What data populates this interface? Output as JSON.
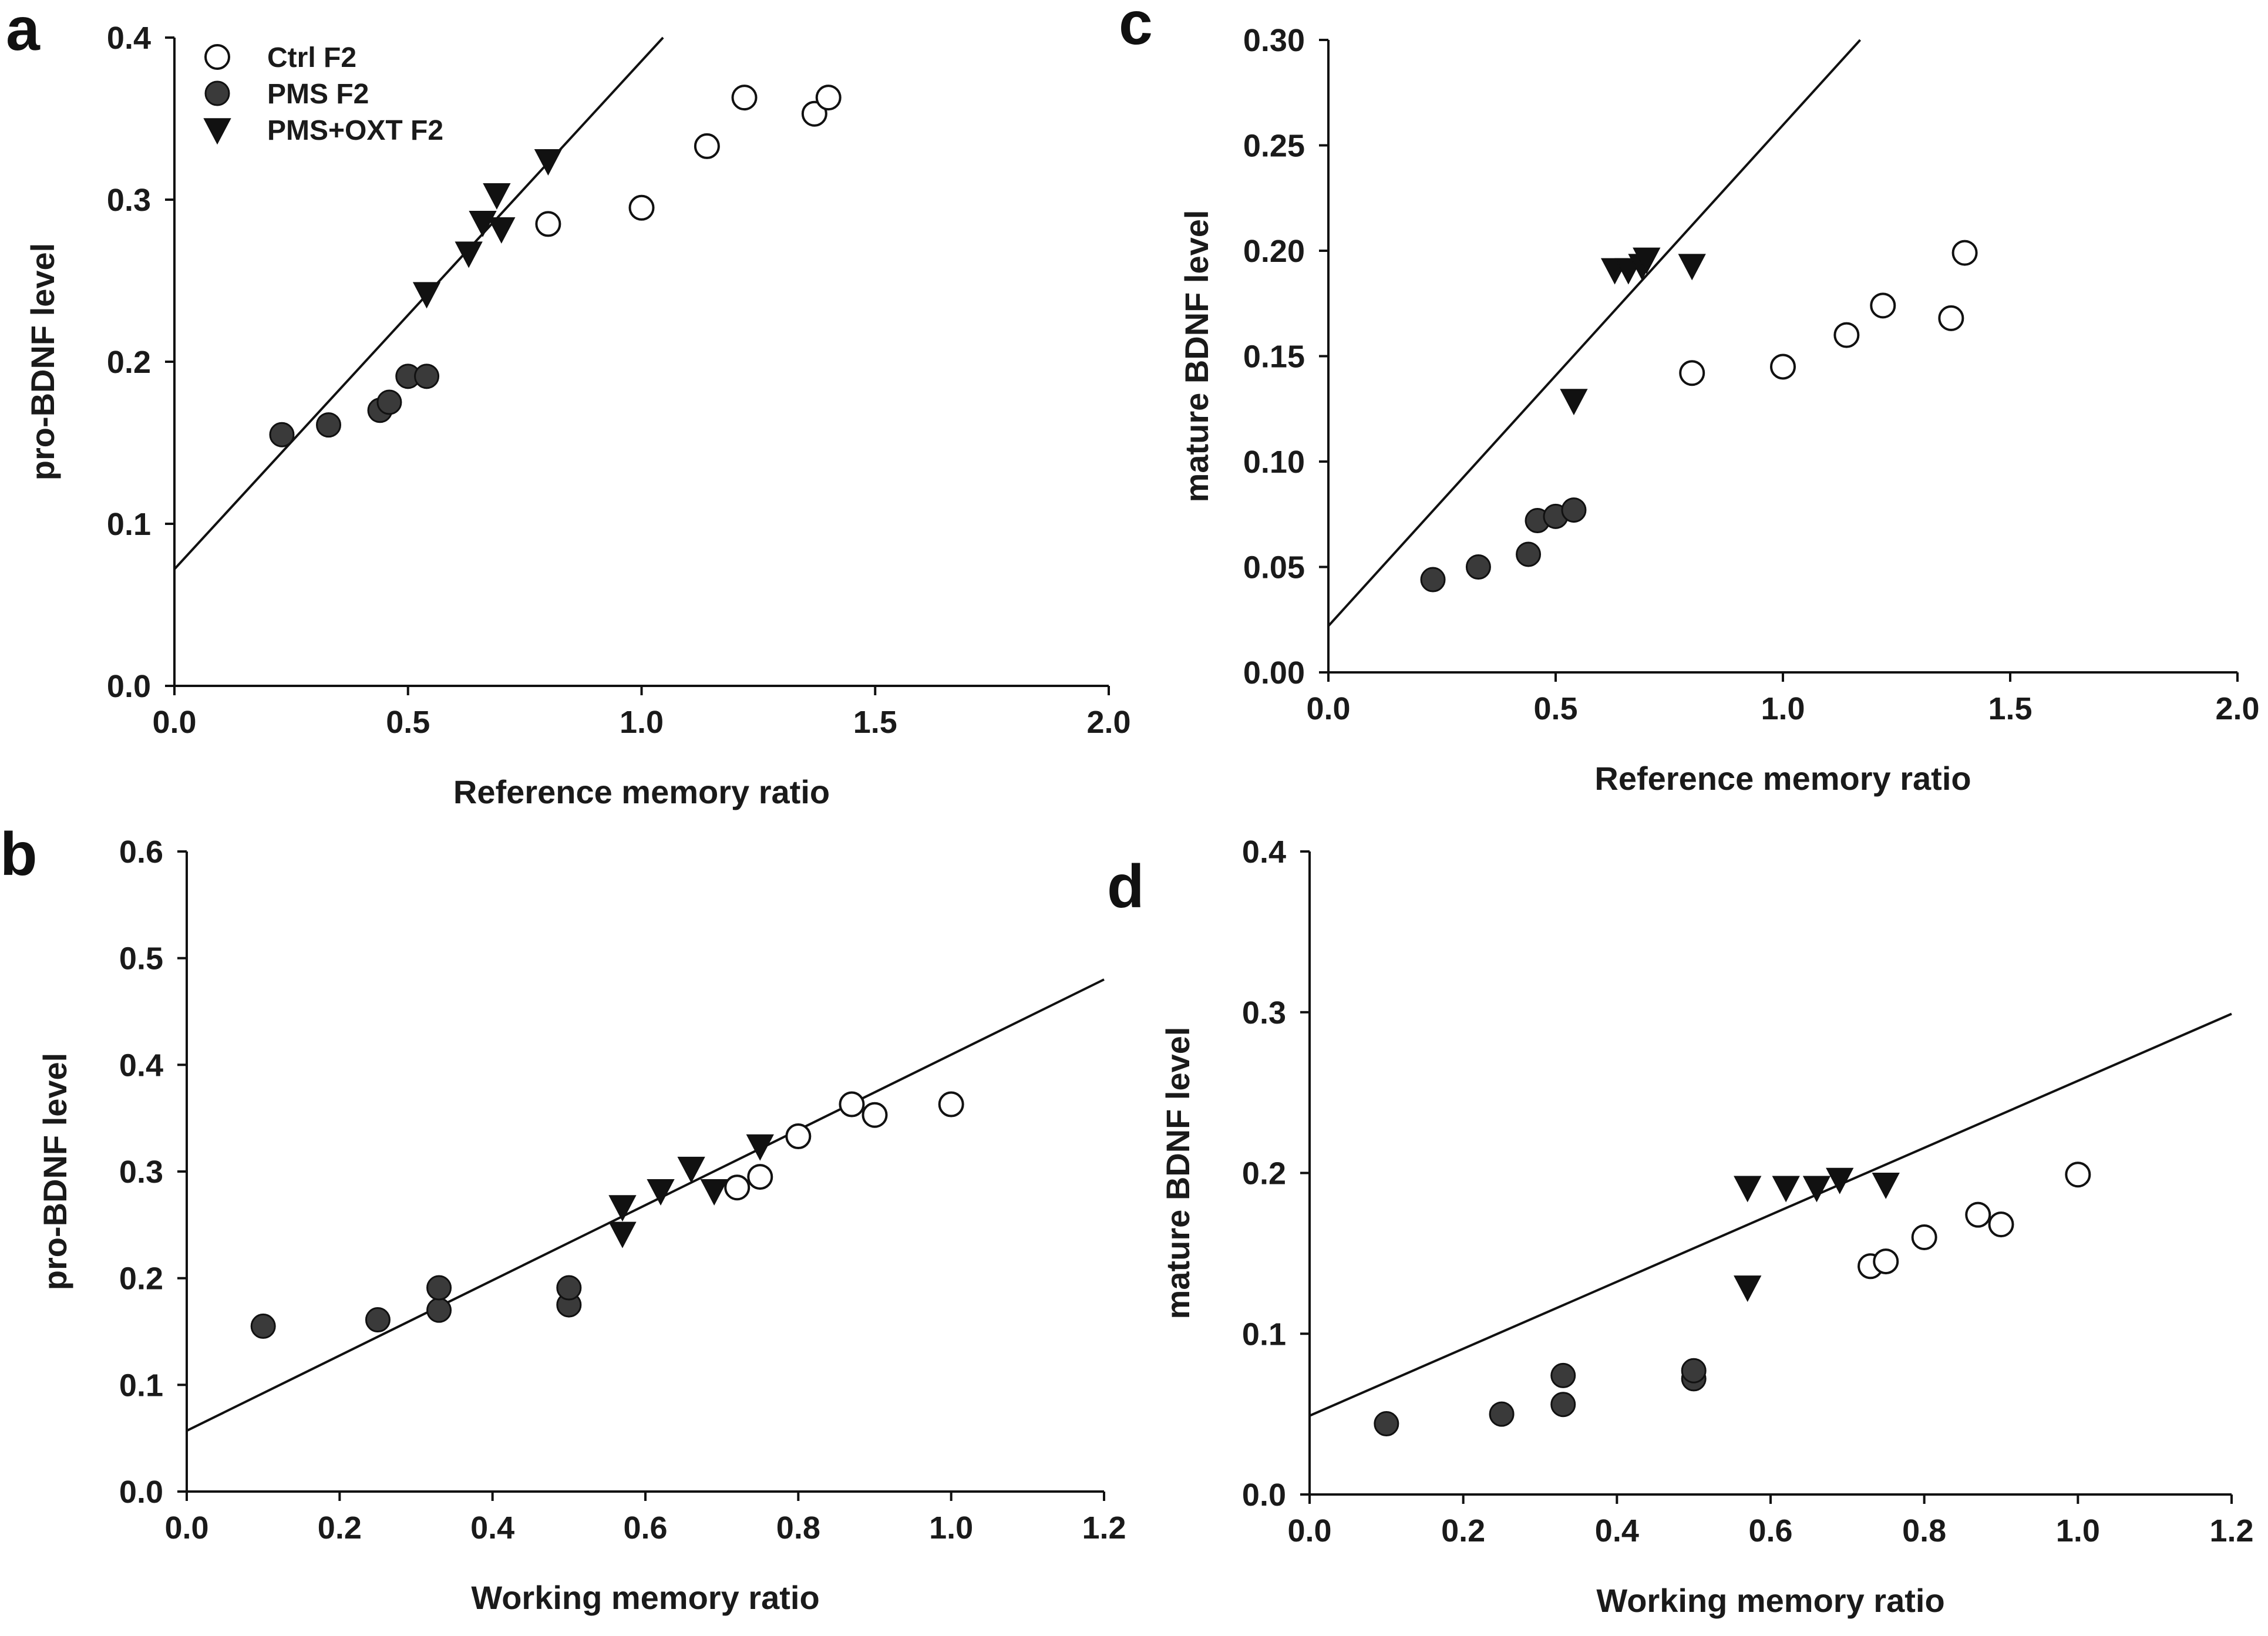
{
  "colors": {
    "ink": "#111111",
    "filled": "#3a3a3a",
    "open_fill": "#ffffff"
  },
  "legend": {
    "items": [
      {
        "key": "ctrl",
        "label": "Ctrl F2",
        "marker": "open-circle"
      },
      {
        "key": "pms",
        "label": "PMS F2",
        "marker": "filled-circle"
      },
      {
        "key": "oxt",
        "label": "PMS+OXT F2",
        "marker": "down-triangle"
      }
    ]
  },
  "chart_data": [
    {
      "id": "a",
      "panel_label": "a",
      "type": "scatter",
      "xlabel": "Reference memory ratio",
      "ylabel": "pro-BDNF level",
      "xlim": [
        0,
        2.0
      ],
      "ylim": [
        0,
        0.4
      ],
      "xticks": [
        "0.0",
        "0.5",
        "1.0",
        "1.5",
        "2.0"
      ],
      "yticks": [
        "0.0",
        "0.1",
        "0.2",
        "0.3",
        "0.4"
      ],
      "has_legend": true,
      "fit_line": {
        "x": [
          0,
          1.046
        ],
        "y": [
          0.072,
          0.4
        ]
      },
      "series": [
        {
          "name": "Ctrl F2",
          "marker": "open-circle",
          "x": [
            0.8,
            1.0,
            1.14,
            1.22,
            1.37,
            1.4
          ],
          "y": [
            0.285,
            0.295,
            0.333,
            0.363,
            0.353,
            0.363
          ]
        },
        {
          "name": "PMS F2",
          "marker": "filled-circle",
          "x": [
            0.23,
            0.33,
            0.44,
            0.46,
            0.5,
            0.54
          ],
          "y": [
            0.155,
            0.161,
            0.17,
            0.175,
            0.191,
            0.191
          ]
        },
        {
          "name": "PMS+OXT F2",
          "marker": "down-triangle",
          "x": [
            0.54,
            0.63,
            0.66,
            0.69,
            0.7,
            0.8
          ],
          "y": [
            0.242,
            0.267,
            0.286,
            0.303,
            0.282,
            0.324
          ]
        }
      ]
    },
    {
      "id": "b",
      "panel_label": "b",
      "type": "scatter",
      "xlabel": "Working memory ratio",
      "ylabel": "pro-BDNF level",
      "xlim": [
        0,
        1.2
      ],
      "ylim": [
        0,
        0.6
      ],
      "xticks": [
        "0.0",
        "0.2",
        "0.4",
        "0.6",
        "0.8",
        "1.0",
        "1.2"
      ],
      "yticks": [
        "0.0",
        "0.1",
        "0.2",
        "0.3",
        "0.4",
        "0.5",
        "0.6"
      ],
      "has_legend": false,
      "fit_line": {
        "x": [
          0,
          1.2
        ],
        "y": [
          0.057,
          0.48
        ]
      },
      "series": [
        {
          "name": "Ctrl F2",
          "marker": "open-circle",
          "x": [
            0.72,
            0.75,
            0.8,
            0.87,
            0.9,
            1.0
          ],
          "y": [
            0.285,
            0.295,
            0.333,
            0.363,
            0.353,
            0.363
          ]
        },
        {
          "name": "PMS F2",
          "marker": "filled-circle",
          "x": [
            0.1,
            0.25,
            0.33,
            0.33,
            0.5,
            0.5
          ],
          "y": [
            0.155,
            0.161,
            0.17,
            0.191,
            0.175,
            0.191
          ]
        },
        {
          "name": "PMS+OXT F2",
          "marker": "down-triangle",
          "x": [
            0.57,
            0.57,
            0.62,
            0.66,
            0.69,
            0.75
          ],
          "y": [
            0.242,
            0.267,
            0.282,
            0.303,
            0.282,
            0.324
          ]
        }
      ]
    },
    {
      "id": "c",
      "panel_label": "c",
      "type": "scatter",
      "xlabel": "Reference memory ratio",
      "ylabel": "mature BDNF level",
      "xlim": [
        0,
        2.0
      ],
      "ylim": [
        0,
        0.3
      ],
      "xticks": [
        "0.0",
        "0.5",
        "1.0",
        "1.5",
        "2.0"
      ],
      "yticks": [
        "0.00",
        "0.05",
        "0.10",
        "0.15",
        "0.20",
        "0.25",
        "0.30"
      ],
      "has_legend": false,
      "fit_line": {
        "x": [
          0,
          1.17
        ],
        "y": [
          0.022,
          0.3
        ]
      },
      "series": [
        {
          "name": "Ctrl F2",
          "marker": "open-circle",
          "x": [
            0.8,
            1.0,
            1.14,
            1.22,
            1.37,
            1.4
          ],
          "y": [
            0.142,
            0.145,
            0.16,
            0.174,
            0.168,
            0.199
          ]
        },
        {
          "name": "PMS F2",
          "marker": "filled-circle",
          "x": [
            0.23,
            0.33,
            0.44,
            0.46,
            0.5,
            0.54
          ],
          "y": [
            0.044,
            0.05,
            0.056,
            0.072,
            0.074,
            0.077
          ]
        },
        {
          "name": "PMS+OXT F2",
          "marker": "down-triangle",
          "x": [
            0.54,
            0.63,
            0.66,
            0.69,
            0.7,
            0.8
          ],
          "y": [
            0.129,
            0.191,
            0.191,
            0.193,
            0.196,
            0.193
          ]
        }
      ]
    },
    {
      "id": "d",
      "panel_label": "d",
      "type": "scatter",
      "xlabel": "Working memory ratio",
      "ylabel": "mature BDNF level",
      "xlim": [
        0,
        1.2
      ],
      "ylim": [
        0,
        0.4
      ],
      "xticks": [
        "0.0",
        "0.2",
        "0.4",
        "0.6",
        "0.8",
        "1.0",
        "1.2"
      ],
      "yticks": [
        "0.0",
        "0.1",
        "0.2",
        "0.3",
        "0.4"
      ],
      "has_legend": false,
      "fit_line": {
        "x": [
          0,
          1.2
        ],
        "y": [
          0.049,
          0.299
        ]
      },
      "series": [
        {
          "name": "Ctrl F2",
          "marker": "open-circle",
          "x": [
            0.73,
            0.75,
            0.8,
            0.87,
            0.9,
            1.0
          ],
          "y": [
            0.142,
            0.145,
            0.16,
            0.174,
            0.168,
            0.199
          ]
        },
        {
          "name": "PMS F2",
          "marker": "filled-circle",
          "x": [
            0.1,
            0.25,
            0.33,
            0.33,
            0.5,
            0.5
          ],
          "y": [
            0.044,
            0.05,
            0.056,
            0.074,
            0.072,
            0.077
          ]
        },
        {
          "name": "PMS+OXT F2",
          "marker": "down-triangle",
          "x": [
            0.57,
            0.57,
            0.62,
            0.66,
            0.69,
            0.75
          ],
          "y": [
            0.129,
            0.191,
            0.191,
            0.191,
            0.196,
            0.193
          ]
        }
      ]
    }
  ]
}
